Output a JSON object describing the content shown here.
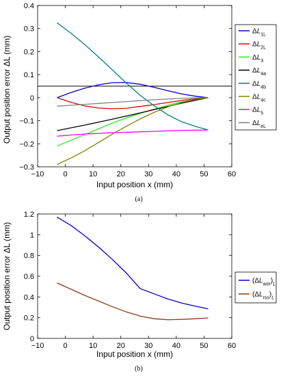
{
  "chart_data": [
    {
      "type": "line",
      "caption": "(a)",
      "xlabel": "Input position x (mm)",
      "ylabel": "Output position error ΔL (mm)",
      "xlim": [
        -10,
        60
      ],
      "ylim": [
        -0.3,
        0.4
      ],
      "xticks": [
        "−10",
        "0",
        "10",
        "20",
        "30",
        "40",
        "50",
        "60"
      ],
      "yticks": [
        "−0.3",
        "−0.2",
        "−0.1",
        "0",
        "0.1",
        "0.2",
        "0.3",
        "0.4"
      ],
      "grid": false,
      "legend_position": "right",
      "x": [
        -3,
        2,
        7,
        12,
        17,
        22,
        27,
        32,
        37,
        42,
        47,
        51.5
      ],
      "series": [
        {
          "name": "ΔL1L",
          "color": "#0000cc",
          "values": [
            0.0,
            0.022,
            0.041,
            0.056,
            0.065,
            0.066,
            0.058,
            0.045,
            0.03,
            0.016,
            0.006,
            0.0
          ]
        },
        {
          "name": "ΔL2L",
          "color": "#e00000",
          "values": [
            0.0,
            -0.02,
            -0.036,
            -0.045,
            -0.048,
            -0.046,
            -0.038,
            -0.03,
            -0.021,
            -0.012,
            -0.005,
            0.0
          ]
        },
        {
          "name": "ΔL3",
          "color": "#22ee22",
          "values": [
            -0.21,
            -0.185,
            -0.16,
            -0.135,
            -0.11,
            -0.088,
            -0.068,
            -0.05,
            -0.033,
            -0.018,
            -0.008,
            0.0
          ]
        },
        {
          "name": "ΔL4a",
          "color": "#000000",
          "values": [
            -0.143,
            -0.131,
            -0.119,
            -0.106,
            -0.093,
            -0.08,
            -0.066,
            -0.052,
            -0.038,
            -0.024,
            -0.011,
            0.0
          ]
        },
        {
          "name": "ΔL4b",
          "color": "#008080",
          "values": [
            0.325,
            0.28,
            0.23,
            0.176,
            0.12,
            0.063,
            0.01,
            -0.035,
            -0.075,
            -0.105,
            -0.125,
            -0.14
          ]
        },
        {
          "name": "ΔL4c",
          "color": "#808000",
          "values": [
            -0.29,
            -0.262,
            -0.23,
            -0.194,
            -0.158,
            -0.124,
            -0.092,
            -0.064,
            -0.04,
            -0.021,
            -0.007,
            0.0
          ]
        },
        {
          "name": "ΔL5",
          "color": "#ff00ff",
          "values": [
            -0.167,
            -0.162,
            -0.158,
            -0.155,
            -0.152,
            -0.15,
            -0.148,
            -0.146,
            -0.144,
            -0.142,
            -0.141,
            -0.14
          ]
        },
        {
          "name": "ΔLeL",
          "color": "#808080",
          "values": [
            -0.037,
            -0.033,
            -0.029,
            -0.025,
            -0.021,
            -0.017,
            -0.013,
            -0.009,
            -0.006,
            -0.003,
            -0.001,
            0.0
          ]
        }
      ]
    },
    {
      "type": "line",
      "caption": "(b)",
      "xlabel": "Input position x (mm)",
      "ylabel": "Output position error ΔL (mm)",
      "xlim": [
        -10,
        60
      ],
      "ylim": [
        0,
        1.2
      ],
      "xticks": [
        "−10",
        "0",
        "10",
        "20",
        "30",
        "40",
        "50",
        "60"
      ],
      "yticks": [
        "0",
        "0.2",
        "0.4",
        "0.6",
        "0.8",
        "1",
        "1.2"
      ],
      "grid": false,
      "legend_position": "right",
      "series": [
        {
          "name": "(ΔLwor)L",
          "color": "#0000cc",
          "x": [
            -3,
            2,
            7,
            12,
            17,
            22,
            27,
            32,
            37,
            42,
            47,
            51.5
          ],
          "values": [
            1.17,
            1.09,
            0.99,
            0.88,
            0.76,
            0.63,
            0.48,
            0.43,
            0.38,
            0.34,
            0.31,
            0.285
          ]
        },
        {
          "name": "(ΔLrss)L",
          "color": "#8b3a1a",
          "x": [
            -3,
            2,
            7,
            12,
            17,
            22,
            27,
            32,
            37,
            42,
            47,
            51.5
          ],
          "values": [
            0.535,
            0.475,
            0.415,
            0.36,
            0.305,
            0.255,
            0.215,
            0.19,
            0.18,
            0.183,
            0.19,
            0.197
          ]
        }
      ]
    }
  ]
}
